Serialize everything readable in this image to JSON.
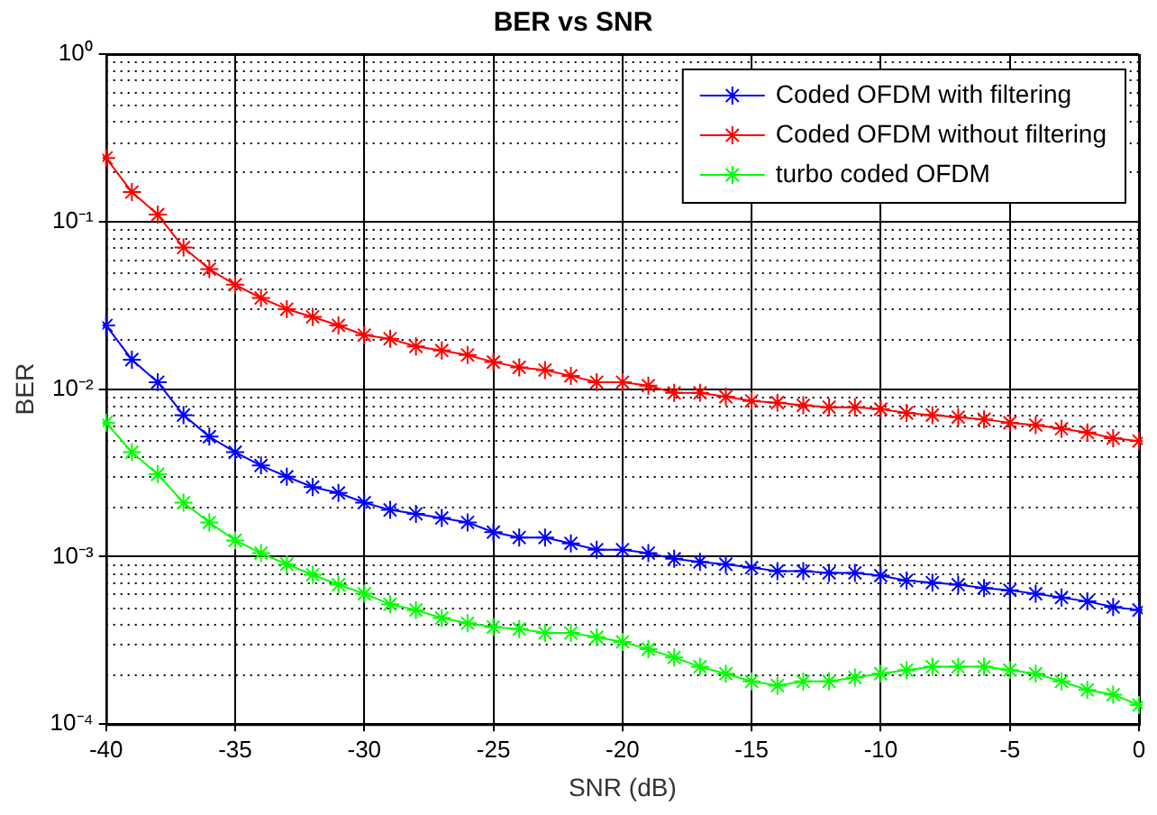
{
  "chart_data": {
    "type": "line",
    "title": "BER vs SNR",
    "xlabel": "SNR (dB)",
    "ylabel": "BER",
    "x": [
      -40,
      -39,
      -38,
      -37,
      -36,
      -35,
      -34,
      -33,
      -32,
      -31,
      -30,
      -29,
      -28,
      -27,
      -26,
      -25,
      -24,
      -23,
      -22,
      -21,
      -20,
      -19,
      -18,
      -17,
      -16,
      -15,
      -14,
      -13,
      -12,
      -11,
      -10,
      -9,
      -8,
      -7,
      -6,
      -5,
      -4,
      -3,
      -2,
      -1,
      0
    ],
    "series": [
      {
        "name": "Coded OFDM with filtering",
        "color": "#0000ff",
        "values": [
          0.024,
          0.015,
          0.011,
          0.007,
          0.0052,
          0.0042,
          0.0035,
          0.003,
          0.0026,
          0.0024,
          0.0021,
          0.0019,
          0.0018,
          0.0017,
          0.0016,
          0.0014,
          0.0013,
          0.0013,
          0.0012,
          0.0011,
          0.0011,
          0.00105,
          0.00097,
          0.00093,
          0.0009,
          0.00086,
          0.00082,
          0.00082,
          0.0008,
          0.0008,
          0.00077,
          0.00072,
          0.0007,
          0.00068,
          0.00065,
          0.00063,
          0.0006,
          0.00057,
          0.00054,
          0.0005,
          0.00048
        ]
      },
      {
        "name": "Coded OFDM without filtering",
        "color": "#ff0000",
        "values": [
          0.24,
          0.15,
          0.11,
          0.07,
          0.052,
          0.042,
          0.035,
          0.03,
          0.027,
          0.024,
          0.021,
          0.02,
          0.018,
          0.017,
          0.016,
          0.0145,
          0.0135,
          0.013,
          0.012,
          0.011,
          0.011,
          0.0105,
          0.0095,
          0.0095,
          0.009,
          0.0085,
          0.0083,
          0.008,
          0.0078,
          0.0078,
          0.0076,
          0.0072,
          0.007,
          0.0068,
          0.0066,
          0.0063,
          0.0061,
          0.0058,
          0.0055,
          0.0051,
          0.0049
        ]
      },
      {
        "name": "turbo coded OFDM",
        "color": "#00ff00",
        "values": [
          0.0063,
          0.0042,
          0.0031,
          0.0021,
          0.0016,
          0.00125,
          0.00105,
          0.0009,
          0.00078,
          0.00068,
          0.0006,
          0.00052,
          0.00048,
          0.00043,
          0.0004,
          0.00038,
          0.00037,
          0.00035,
          0.00035,
          0.00033,
          0.00031,
          0.00028,
          0.00025,
          0.00022,
          0.0002,
          0.00018,
          0.00017,
          0.00018,
          0.00018,
          0.00019,
          0.0002,
          0.00021,
          0.00022,
          0.00022,
          0.00022,
          0.00021,
          0.0002,
          0.00018,
          0.00016,
          0.00015,
          0.00013
        ]
      }
    ],
    "xlim": [
      -40,
      0
    ],
    "xticks": [
      -40,
      -35,
      -30,
      -25,
      -20,
      -15,
      -10,
      -5,
      0
    ],
    "ylim": [
      0.0001,
      1
    ],
    "yticks": [
      {
        "value": 0.0001,
        "label": "10⁻⁴"
      },
      {
        "value": 0.001,
        "label": "10⁻³"
      },
      {
        "value": 0.01,
        "label": "10⁻²"
      },
      {
        "value": 0.1,
        "label": "10⁻¹"
      },
      {
        "value": 1,
        "label": "10⁰"
      }
    ],
    "log": "y",
    "grid": true,
    "legend": "top right",
    "marker": "cross",
    "line_style": "solid"
  }
}
